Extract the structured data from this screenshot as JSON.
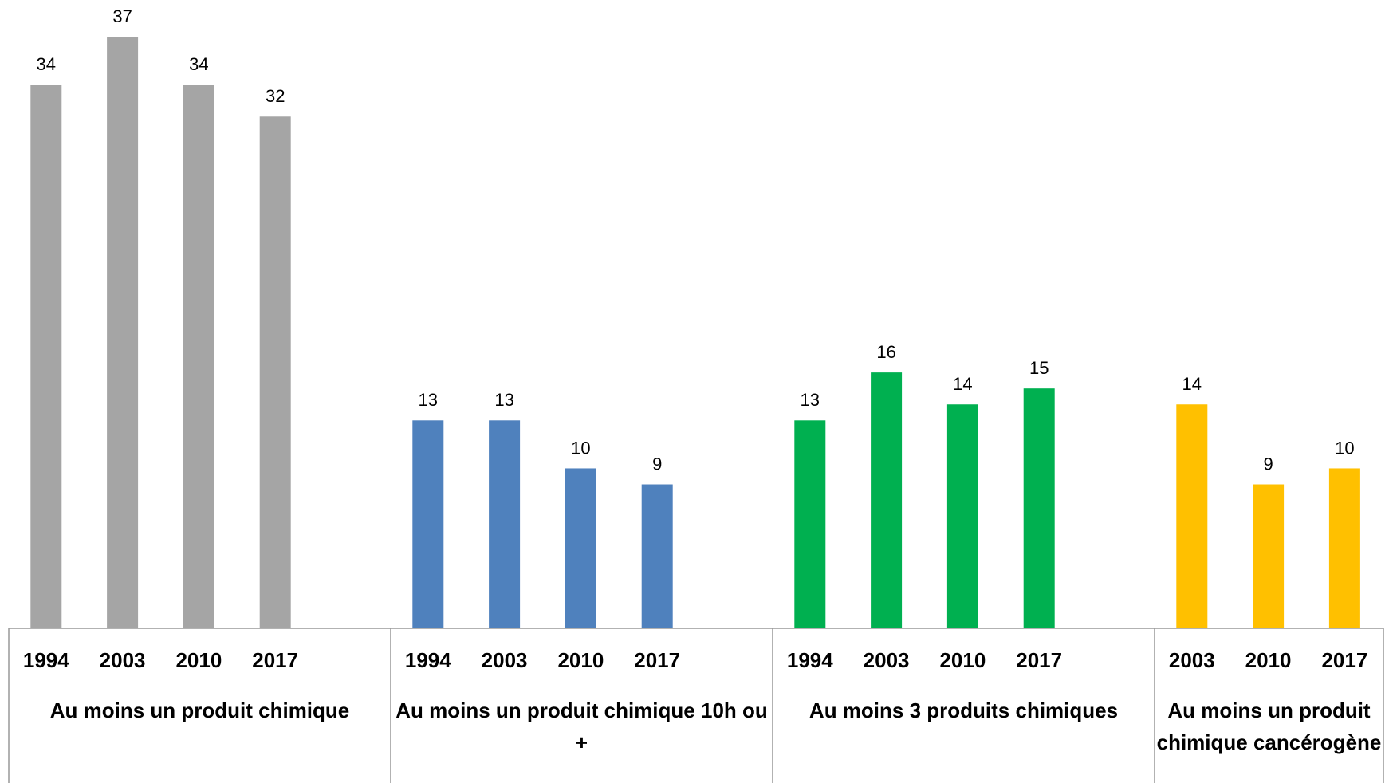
{
  "chart_data": {
    "type": "bar",
    "groups": [
      {
        "name": "Au moins un produit chimique",
        "color": "#a5a5a5",
        "categories": [
          "1994",
          "2003",
          "2010",
          "2017"
        ],
        "values": [
          34,
          37,
          34,
          32
        ]
      },
      {
        "name": "Au moins un produit chimique 10h ou +",
        "color": "#4f81bd",
        "categories": [
          "1994",
          "2003",
          "2010",
          "2017"
        ],
        "values": [
          13,
          13,
          10,
          9
        ]
      },
      {
        "name": "Au moins 3 produits chimiques",
        "color": "#00b050",
        "categories": [
          "1994",
          "2003",
          "2010",
          "2017"
        ],
        "values": [
          13,
          16,
          14,
          15
        ]
      },
      {
        "name": "Au moins un produit chimique cancérogène",
        "color": "#ffc000",
        "categories": [
          "2003",
          "2010",
          "2017"
        ],
        "values": [
          14,
          9,
          10
        ]
      }
    ]
  }
}
